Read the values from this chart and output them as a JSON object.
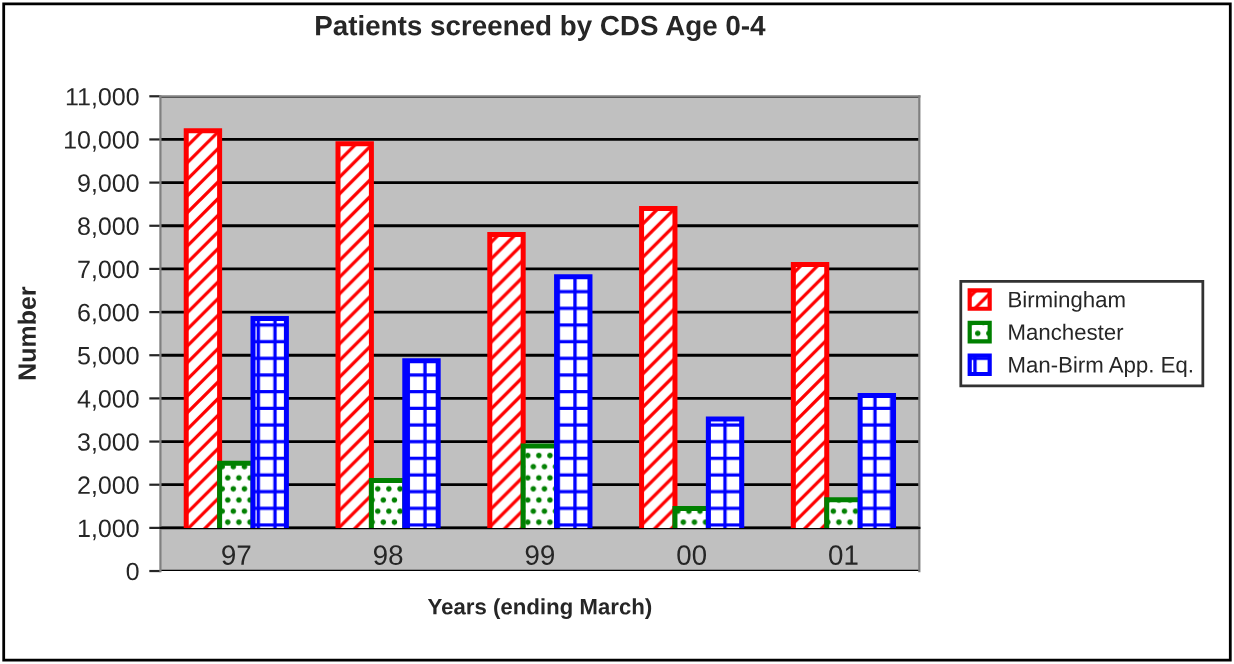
{
  "chart_data": {
    "type": "bar",
    "title": "Patients screened by CDS Age 0-4",
    "xlabel": "Years (ending March)",
    "ylabel": "Number",
    "categories": [
      "97",
      "98",
      "99",
      "00",
      "01"
    ],
    "series": [
      {
        "name": "Birmingham",
        "color": "#ff0000",
        "values": [
          10200,
          9900,
          7800,
          8400,
          7100
        ]
      },
      {
        "name": "Manchester",
        "color": "#008000",
        "values": [
          2500,
          2100,
          2900,
          1450,
          1650
        ]
      },
      {
        "name": "Man-Birm App. Eq.",
        "color": "#0000ff",
        "values": [
          5850,
          4870,
          6820,
          3520,
          4070
        ]
      }
    ],
    "ylim": [
      0,
      11000
    ],
    "yticks": [
      {
        "value": 0,
        "label": "0"
      },
      {
        "value": 1000,
        "label": "1,000"
      },
      {
        "value": 2000,
        "label": "2,000"
      },
      {
        "value": 3000,
        "label": "3,000"
      },
      {
        "value": 4000,
        "label": "4,000"
      },
      {
        "value": 5000,
        "label": "5,000"
      },
      {
        "value": 6000,
        "label": "6,000"
      },
      {
        "value": 7000,
        "label": "7,000"
      },
      {
        "value": 8000,
        "label": "8,000"
      },
      {
        "value": 9000,
        "label": "9,000"
      },
      {
        "value": 10000,
        "label": "10,000"
      },
      {
        "value": 11000,
        "label": "11,000"
      }
    ],
    "ref_lines": [
      {
        "axis": "y",
        "value": 1000,
        "color": "#000000"
      }
    ],
    "grid": "y",
    "legend": "right"
  }
}
